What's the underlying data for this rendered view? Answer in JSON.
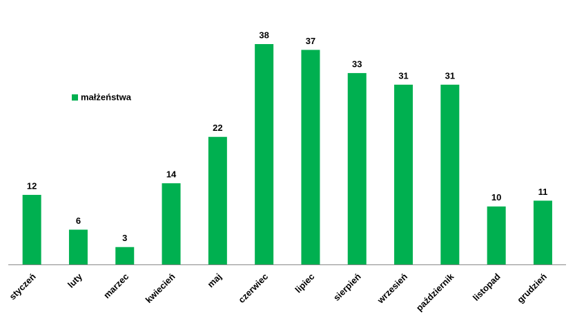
{
  "chart_data": {
    "type": "bar",
    "categories": [
      "styczeń",
      "luty",
      "marzec",
      "kwiecień",
      "maj",
      "czerwiec",
      "lipiec",
      "sierpień",
      "wrzesień",
      "październik",
      "listopad",
      "grudzień"
    ],
    "series": [
      {
        "name": "małżeństwa",
        "color": "#00b050",
        "values": [
          12,
          6,
          3,
          14,
          22,
          38,
          37,
          33,
          31,
          31,
          10,
          11
        ]
      }
    ],
    "legend": "upper left"
  }
}
